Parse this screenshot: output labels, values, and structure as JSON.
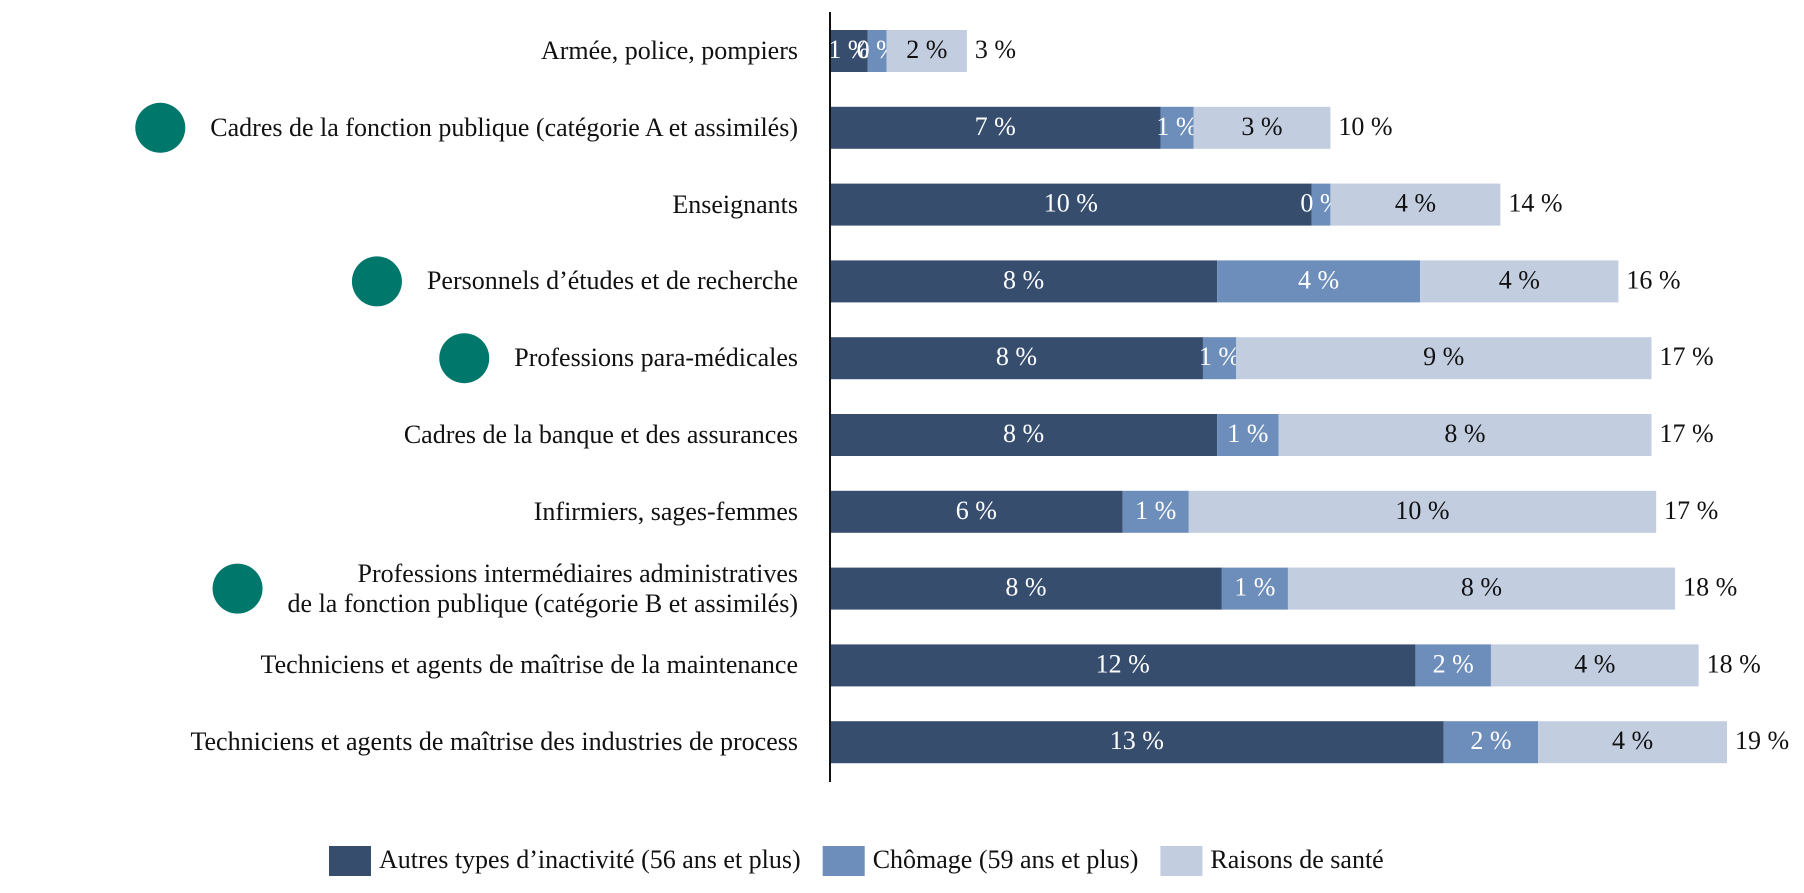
{
  "chart_data": {
    "type": "stacked-barh",
    "categories": [
      "Armée, police, pompiers",
      "Cadres de la fonction publique (catégorie A et assimilés)",
      "Enseignants",
      "Personnels d’études et de recherche",
      "Professions para-médicales",
      "Cadres de la banque et des assurances",
      "Infirmiers, sages-femmes",
      "Professions intermédiaires administratives\nde la fonction publique (catégorie B et assimilés)",
      "Techniciens et agents de maîtrise de la maintenance",
      "Techniciens et agents de maîtrise des industries de process"
    ],
    "highlighted": [
      false,
      true,
      false,
      true,
      true,
      false,
      false,
      true,
      false,
      false
    ],
    "highlight_color": "#00776b",
    "series": [
      {
        "name": "Autres types d’inactivité (56 ans et plus)",
        "color": "#364d6e",
        "label_color": "#ffffff",
        "values": [
          0.8,
          7.0,
          10.2,
          8.2,
          7.9,
          8.2,
          6.2,
          8.3,
          12.4,
          13.0
        ],
        "value_labels": [
          "1 %",
          "7 %",
          "10 %",
          "8 %",
          "8 %",
          "8 %",
          "6 %",
          "8 %",
          "12 %",
          "13 %"
        ]
      },
      {
        "name": "Chômage (59 ans et plus)",
        "color": "#6d8dba",
        "label_color": "#ffffff",
        "values": [
          0.4,
          0.7,
          0.4,
          4.3,
          0.7,
          1.3,
          1.4,
          1.4,
          1.6,
          2.0
        ],
        "value_labels": [
          "0 %",
          "1 %",
          "0 %",
          "4 %",
          "1 %",
          "1 %",
          "1 %",
          "1 %",
          "2 %",
          "2 %"
        ]
      },
      {
        "name": "Raisons de santé",
        "color": "#c2cde0",
        "label_color": "#111111",
        "values": [
          1.7,
          2.9,
          3.6,
          4.2,
          8.8,
          7.9,
          9.9,
          8.2,
          4.4,
          4.0
        ],
        "value_labels": [
          "2 %",
          "3 %",
          "4 %",
          "4 %",
          "9 %",
          "8 %",
          "10 %",
          "8 %",
          "4 %",
          "4 %"
        ]
      }
    ],
    "total_labels": [
      "3 %",
      "10 %",
      "14 %",
      "16 %",
      "17 %",
      "17 %",
      "17 %",
      "18 %",
      "18 %",
      "19 %"
    ]
  }
}
